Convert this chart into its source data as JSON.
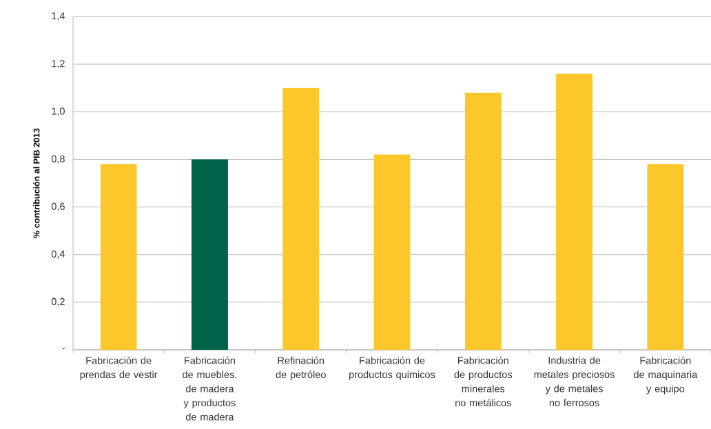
{
  "chart_data": {
    "type": "bar",
    "ylabel": "% contribución al PIB 2013",
    "categories": [
      "Fabricación de prendas de vestir",
      "Fabricación de muebles. de madera y productos de madera",
      "Refinación de petróleo",
      "Fabricación de productos quimicos",
      "Fabricación de productos minerales no metálicos",
      "Industria de metales preciosos y de metales no ferrosos",
      "Fabricación de maquinaria y equipo"
    ],
    "values": [
      0.78,
      0.8,
      1.1,
      0.82,
      1.08,
      1.16,
      0.78
    ],
    "colors": [
      "#fcc72a",
      "#00634a",
      "#fcc72a",
      "#fcc72a",
      "#fcc72a",
      "#fcc72a",
      "#fcc72a"
    ],
    "ylim": [
      0,
      1.4
    ],
    "yticks": [
      {
        "value": 0,
        "label": "-"
      },
      {
        "value": 0.2,
        "label": "0,2"
      },
      {
        "value": 0.4,
        "label": "0,4"
      },
      {
        "value": 0.6,
        "label": "0,6"
      },
      {
        "value": 0.8,
        "label": "0,8"
      },
      {
        "value": 1.0,
        "label": "1,0"
      },
      {
        "value": 1.2,
        "label": "1,2"
      },
      {
        "value": 1.4,
        "label": "1,4"
      }
    ],
    "grid": "y"
  }
}
